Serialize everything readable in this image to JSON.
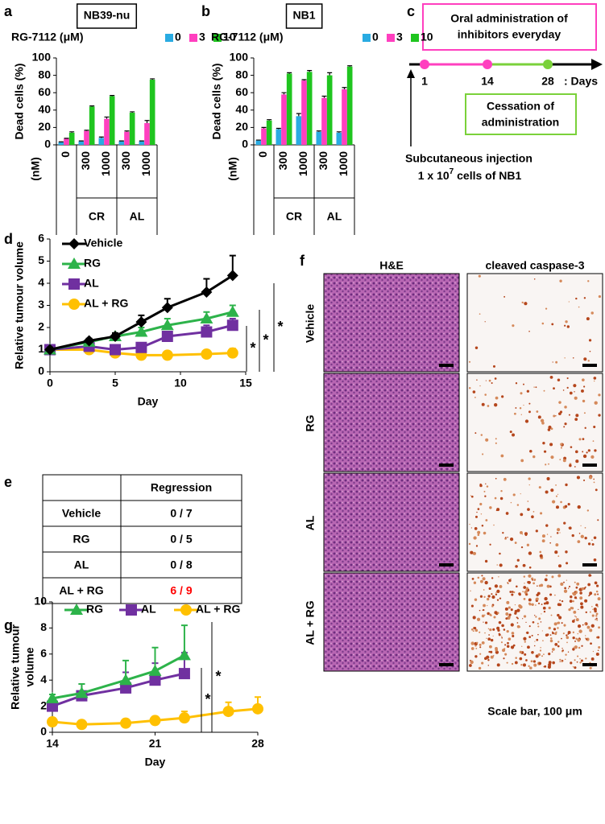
{
  "chart_data": [
    {
      "type": "bar",
      "label": "a",
      "title": "NB39-nu",
      "legend_title": "RG-7112 (μM)",
      "ylabel": "Dead cells (%)",
      "ylim": [
        0,
        100
      ],
      "yticks": [
        0,
        20,
        40,
        60,
        80,
        100
      ],
      "categories": [
        "0",
        "300",
        "1000",
        "300",
        "1000"
      ],
      "unit_label": "(nM)",
      "groups": [
        "CR",
        "AL"
      ],
      "series": [
        {
          "name": "0",
          "color": "#29abe2",
          "values": [
            3,
            4,
            8,
            4,
            4
          ],
          "errors": [
            0.5,
            0.5,
            1,
            0.5,
            0.5
          ]
        },
        {
          "name": "3",
          "color": "#ff3fbf",
          "values": [
            7,
            16,
            30,
            15,
            25
          ],
          "errors": [
            0.5,
            0.8,
            2,
            1,
            3
          ]
        },
        {
          "name": "10",
          "color": "#1fc51f",
          "values": [
            14,
            44,
            56,
            37,
            75
          ],
          "errors": [
            1,
            0.8,
            0.8,
            1,
            1
          ]
        }
      ]
    },
    {
      "type": "bar",
      "label": "b",
      "title": "NB1",
      "legend_title": "RG-7112 (μM)",
      "ylabel": "Dead cells (%)",
      "ylim": [
        0,
        100
      ],
      "yticks": [
        0,
        20,
        40,
        60,
        80,
        100
      ],
      "categories": [
        "0",
        "300",
        "1000",
        "300",
        "1000"
      ],
      "unit_label": "(nM)",
      "groups": [
        "CR",
        "AL"
      ],
      "series": [
        {
          "name": "0",
          "color": "#29abe2",
          "values": [
            5,
            18,
            33,
            15,
            14
          ],
          "errors": [
            0.5,
            1,
            3,
            1,
            1
          ]
        },
        {
          "name": "3",
          "color": "#ff3fbf",
          "values": [
            19,
            58,
            74,
            54,
            64
          ],
          "errors": [
            1,
            2,
            1,
            2,
            2
          ]
        },
        {
          "name": "10",
          "color": "#1fc51f",
          "values": [
            28,
            82,
            84,
            80,
            90
          ],
          "errors": [
            1,
            1,
            1.5,
            3,
            1
          ]
        }
      ]
    },
    {
      "type": "line",
      "label": "d",
      "xlabel": "Day",
      "ylabel": [
        "Relative tumour volume"
      ],
      "xlim": [
        0,
        15
      ],
      "xticks": [
        0,
        5,
        10,
        15
      ],
      "ylim": [
        0,
        6
      ],
      "yticks": [
        0,
        1,
        2,
        3,
        4,
        5,
        6
      ],
      "legend": "upper left",
      "x": [
        0,
        3,
        5,
        7,
        9,
        12,
        14
      ],
      "annotations": [
        "*",
        "*",
        "*"
      ],
      "series": [
        {
          "name": "Vehicle",
          "color": "#000000",
          "marker": "diamond",
          "values": [
            1,
            1.4,
            1.6,
            2.25,
            2.9,
            3.6,
            4.35
          ],
          "errors": [
            0.1,
            0.1,
            0.15,
            0.3,
            0.4,
            0.6,
            0.9
          ]
        },
        {
          "name": "RG",
          "color": "#2db34a",
          "marker": "triangle",
          "values": [
            1,
            1.35,
            1.6,
            1.8,
            2.1,
            2.4,
            2.7
          ],
          "errors": [
            0.1,
            0.1,
            0.15,
            0.2,
            0.3,
            0.3,
            0.3
          ]
        },
        {
          "name": "AL",
          "color": "#7030a0",
          "marker": "square",
          "values": [
            1,
            1.15,
            1,
            1.1,
            1.6,
            1.8,
            2.1
          ],
          "errors": [
            0.1,
            0.1,
            0.1,
            0.1,
            0.2,
            0.3,
            0.3
          ]
        },
        {
          "name": "AL + RG",
          "color": "#ffc000",
          "marker": "circle",
          "values": [
            1,
            1,
            0.85,
            0.75,
            0.75,
            0.8,
            0.85
          ],
          "errors": [
            0.1,
            0.1,
            0.1,
            0.1,
            0.1,
            0.1,
            0.2
          ]
        }
      ]
    },
    {
      "type": "line",
      "label": "g",
      "xlabel": "Day",
      "ylabel": [
        "Relative tumour",
        "volume"
      ],
      "xlim": [
        14,
        28
      ],
      "xticks": [
        14,
        21,
        28
      ],
      "ylim": [
        0,
        10
      ],
      "yticks": [
        0,
        2,
        4,
        6,
        8,
        10
      ],
      "legend": "top",
      "x": [
        14,
        16,
        19,
        21,
        23,
        26,
        28
      ],
      "annotations": [
        "*",
        "*"
      ],
      "series": [
        {
          "name": "RG",
          "color": "#2db34a",
          "marker": "triangle",
          "values": [
            2.6,
            3,
            4,
            4.7,
            5.9,
            null,
            null
          ],
          "errors": [
            0.3,
            0.7,
            1.5,
            1.8,
            2.3,
            null,
            null
          ]
        },
        {
          "name": "AL",
          "color": "#7030a0",
          "marker": "square",
          "values": [
            2,
            2.8,
            3.4,
            4,
            4.5,
            null,
            null
          ],
          "errors": [
            0.5,
            0.9,
            1.2,
            1.3,
            1.6,
            null,
            null
          ]
        },
        {
          "name": "AL + RG",
          "color": "#ffc000",
          "marker": "circle",
          "values": [
            0.8,
            0.6,
            0.7,
            0.9,
            1.1,
            1.6,
            1.8
          ],
          "errors": [
            0.3,
            0.2,
            0.2,
            0.3,
            0.5,
            0.7,
            0.9
          ]
        }
      ]
    }
  ],
  "schedule": {
    "label": "c",
    "treatment": [
      "Oral administration of",
      "inhibitors everyday"
    ],
    "days": [
      "1",
      "14",
      "28"
    ],
    "unit": ": Days",
    "cessation": [
      "Cessation of",
      "administration"
    ],
    "injection": "Subcutaneous injection",
    "cells": {
      "prefix": "1 x 10",
      "exponent": "7",
      "suffix": " cells of NB1"
    }
  },
  "table": {
    "label": "e",
    "column": "Regression",
    "rows": [
      [
        "Vehicle",
        "0 / 7"
      ],
      [
        "RG",
        "0 / 5"
      ],
      [
        "AL",
        "0 / 8"
      ],
      [
        "AL + RG",
        "6 / 9"
      ]
    ]
  },
  "histology": {
    "label": "f",
    "columns": [
      "H&E",
      "cleaved caspase-3"
    ],
    "rows": [
      "Vehicle",
      "RG",
      "AL",
      "AL + RG"
    ],
    "scale_bar": "Scale bar, 100 μm"
  }
}
